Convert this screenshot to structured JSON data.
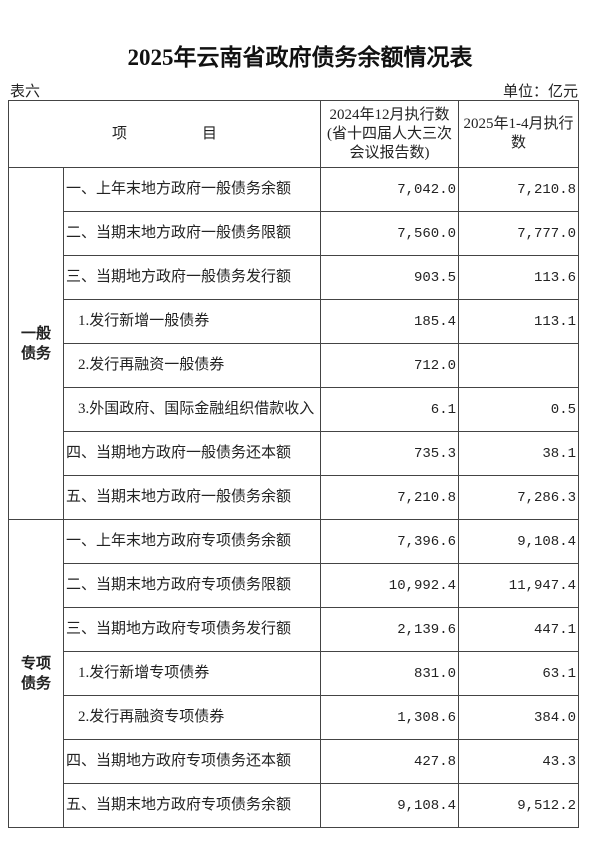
{
  "title": "2025年云南省政府债务余额情况表",
  "table_no": "表六",
  "unit": "单位：亿元",
  "headers": {
    "item": "项　　　　　目",
    "col1": "2024年12月执行数(省十四届人大三次会议报告数)",
    "col2": "2025年1-4月执行数"
  },
  "sections": [
    {
      "name": "一般债务",
      "rows": [
        {
          "item": "一、上年末地方政府一般债务余额",
          "v1": "7,042.0",
          "v2": "7,210.8"
        },
        {
          "item": "二、当期末地方政府一般债务限额",
          "v1": "7,560.0",
          "v2": "7,777.0"
        },
        {
          "item": "三、当期地方政府一般债务发行额",
          "v1": "903.5",
          "v2": "113.6"
        },
        {
          "item": "1.发行新增一般债券",
          "v1": "185.4",
          "v2": "113.1",
          "sub": true
        },
        {
          "item": "2.发行再融资一般债券",
          "v1": "712.0",
          "v2": "",
          "sub": true
        },
        {
          "item": "3.外国政府、国际金融组织借款收入",
          "v1": "6.1",
          "v2": "0.5",
          "sub": true
        },
        {
          "item": "四、当期地方政府一般债务还本额",
          "v1": "735.3",
          "v2": "38.1"
        },
        {
          "item": "五、当期末地方政府一般债务余额",
          "v1": "7,210.8",
          "v2": "7,286.3"
        }
      ]
    },
    {
      "name": "专项债务",
      "rows": [
        {
          "item": "一、上年末地方政府专项债务余额",
          "v1": "7,396.6",
          "v2": "9,108.4"
        },
        {
          "item": "二、当期末地方政府专项债务限额",
          "v1": "10,992.4",
          "v2": "11,947.4"
        },
        {
          "item": "三、当期地方政府专项债务发行额",
          "v1": "2,139.6",
          "v2": "447.1"
        },
        {
          "item": "1.发行新增专项债券",
          "v1": "831.0",
          "v2": "63.1",
          "sub": true
        },
        {
          "item": "2.发行再融资专项债券",
          "v1": "1,308.6",
          "v2": "384.0",
          "sub": true
        },
        {
          "item": "四、当期地方政府专项债务还本额",
          "v1": "427.8",
          "v2": "43.3"
        },
        {
          "item": "五、当期末地方政府专项债务余额",
          "v1": "9,108.4",
          "v2": "9,512.2"
        }
      ]
    }
  ]
}
